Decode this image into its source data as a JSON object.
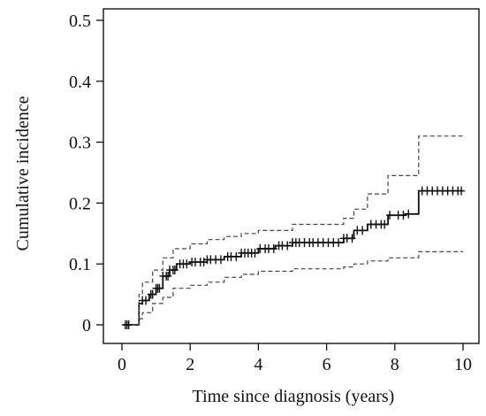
{
  "chart_data": {
    "type": "line",
    "title": "",
    "xlabel": "Time since diagnosis (years)",
    "ylabel": "Cumulative incidence",
    "xlim": [
      0,
      10
    ],
    "ylim": [
      0,
      0.5
    ],
    "x_ticks": [
      0,
      2,
      4,
      6,
      8,
      10
    ],
    "x_tick_labels": [
      "0",
      "2",
      "4",
      "6",
      "8",
      "10"
    ],
    "y_ticks": [
      0,
      0.1,
      0.2,
      0.3,
      0.4,
      0.5
    ],
    "y_tick_labels": [
      "0",
      "0.1",
      "0.2",
      "0.3",
      "0.4",
      "0.5"
    ],
    "grid": false,
    "legend": "none",
    "series": [
      {
        "role": "estimate",
        "style": "solid step with censoring marks",
        "x": [
          0.05,
          0.5,
          0.6,
          0.8,
          1.0,
          1.2,
          1.4,
          1.6,
          2.0,
          2.5,
          3.0,
          3.5,
          4.0,
          4.5,
          5.0,
          6.5,
          6.8,
          7.2,
          7.8,
          8.3,
          8.7,
          10.0
        ],
        "y": [
          0,
          0.035,
          0.04,
          0.05,
          0.06,
          0.08,
          0.09,
          0.1,
          0.103,
          0.107,
          0.112,
          0.118,
          0.125,
          0.13,
          0.135,
          0.142,
          0.155,
          0.165,
          0.18,
          0.182,
          0.22,
          0.22
        ]
      },
      {
        "role": "upper confidence limit",
        "style": "dashed step",
        "x": [
          0.05,
          0.5,
          0.6,
          0.9,
          1.2,
          1.5,
          2.0,
          2.5,
          3.0,
          3.5,
          4.0,
          5.0,
          6.5,
          6.8,
          7.2,
          7.8,
          8.7,
          10.0
        ],
        "y": [
          0,
          0.05,
          0.07,
          0.09,
          0.11,
          0.125,
          0.133,
          0.14,
          0.145,
          0.15,
          0.155,
          0.165,
          0.175,
          0.19,
          0.215,
          0.245,
          0.31,
          0.31
        ]
      },
      {
        "role": "lower confidence limit",
        "style": "dashed step",
        "x": [
          0.05,
          0.5,
          0.6,
          0.9,
          1.2,
          1.5,
          2.0,
          2.5,
          3.0,
          3.5,
          4.0,
          5.0,
          6.5,
          6.8,
          7.2,
          7.8,
          8.7,
          10.0
        ],
        "y": [
          0,
          0.01,
          0.02,
          0.035,
          0.045,
          0.06,
          0.065,
          0.07,
          0.078,
          0.083,
          0.088,
          0.092,
          0.095,
          0.1,
          0.105,
          0.11,
          0.12,
          0.12
        ]
      }
    ],
    "censor_x": [
      0.1,
      0.15,
      0.2,
      0.6,
      0.7,
      0.85,
      0.9,
      1.0,
      1.05,
      1.1,
      1.2,
      1.3,
      1.35,
      1.4,
      1.5,
      1.55,
      1.7,
      1.8,
      1.9,
      2.05,
      2.15,
      2.3,
      2.4,
      2.5,
      2.6,
      2.75,
      2.9,
      3.1,
      3.2,
      3.35,
      3.5,
      3.6,
      3.7,
      3.8,
      3.9,
      4.05,
      4.2,
      4.3,
      4.45,
      4.6,
      4.7,
      4.85,
      5.0,
      5.1,
      5.2,
      5.35,
      5.5,
      5.6,
      5.75,
      5.9,
      6.05,
      6.2,
      6.35,
      6.5,
      6.6,
      6.75,
      6.9,
      7.05,
      7.3,
      7.45,
      7.6,
      7.7,
      7.85,
      8.1,
      8.25,
      8.4,
      8.8,
      8.95,
      9.1,
      9.25,
      9.4,
      9.55,
      9.7,
      9.85,
      9.95
    ]
  }
}
